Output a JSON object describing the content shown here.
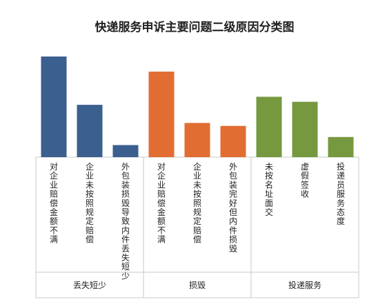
{
  "chart_data": {
    "type": "bar",
    "title": "快递服务申诉主要问题二级原因分类图",
    "xlabel": "",
    "ylabel": "",
    "grid": false,
    "legend": "none",
    "groups": [
      {
        "name": "丢失短少",
        "color": "#3b5f8e",
        "categories": [
          "对企业赔偿金额不满",
          "企业未按照规定赔偿",
          "外包装损毁导致内件丢失短少"
        ],
        "values": [
          100,
          52,
          12
        ]
      },
      {
        "name": "损毁",
        "color": "#e26d33",
        "categories": [
          "对企业赔偿金额不满",
          "企业未按照规定赔偿",
          "外包装完好但内件损毁"
        ],
        "values": [
          85,
          34,
          31
        ]
      },
      {
        "name": "投递服务",
        "color": "#76993f",
        "categories": [
          "未按名址面交",
          "虚假签收",
          "投递员服务态度"
        ],
        "values": [
          60,
          55,
          20
        ]
      }
    ]
  }
}
